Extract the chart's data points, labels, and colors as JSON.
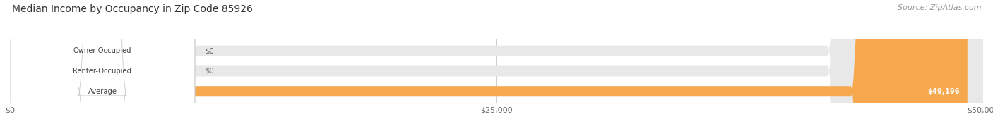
{
  "title": "Median Income by Occupancy in Zip Code 85926",
  "source": "Source: ZipAtlas.com",
  "categories": [
    "Owner-Occupied",
    "Renter-Occupied",
    "Average"
  ],
  "values": [
    0,
    0,
    49196
  ],
  "max_value": 50000,
  "bar_colors": [
    "#72ccc8",
    "#c3a8d1",
    "#f5a84e"
  ],
  "bar_bg_color": "#e8e8e8",
  "value_labels": [
    "$0",
    "$0",
    "$49,196"
  ],
  "xtick_labels": [
    "$0",
    "$25,000",
    "$50,000"
  ],
  "xtick_values": [
    0,
    25000,
    50000
  ],
  "title_fontsize": 10,
  "source_fontsize": 8,
  "bar_height": 0.52,
  "figsize": [
    14.06,
    1.96
  ],
  "dpi": 100
}
